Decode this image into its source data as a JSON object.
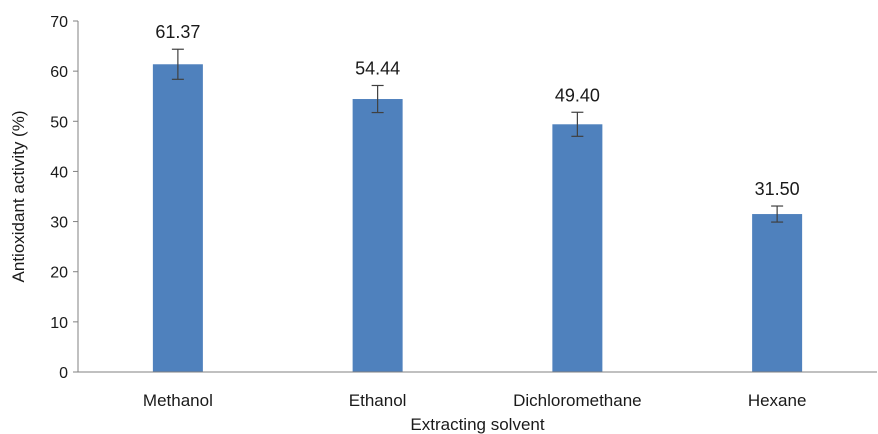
{
  "chart_data": {
    "type": "bar",
    "categories": [
      "Methanol",
      "Ethanol",
      "Dichloromethane",
      "Hexane"
    ],
    "values": [
      61.37,
      54.44,
      49.4,
      31.5
    ],
    "data_labels": [
      "61.37",
      "54.44",
      "49.40",
      "31.50"
    ],
    "error": [
      3.0,
      2.7,
      2.4,
      1.6
    ],
    "xlabel": "Extracting solvent",
    "ylabel": "Antioxidant activity (%)",
    "ylim": [
      0,
      70
    ],
    "yticks": [
      0,
      10,
      20,
      30,
      40,
      50,
      60,
      70
    ],
    "grid": false,
    "legend": "none",
    "colors": {
      "bar": "#4f81bd",
      "error_bar": "#404040",
      "axis": "#808080"
    }
  }
}
